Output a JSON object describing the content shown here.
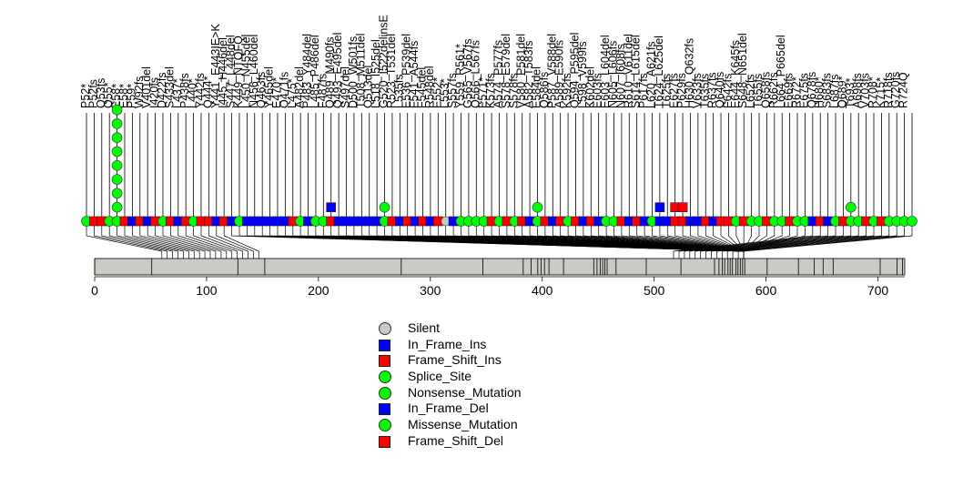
{
  "chart_data": {
    "type": "lollipop",
    "title": "",
    "xlabel": "",
    "ylabel": "",
    "protein_length": 724,
    "xlim": [
      0,
      724
    ],
    "axis_ticks": [
      0,
      100,
      200,
      300,
      400,
      500,
      600,
      700
    ],
    "colors": {
      "silent": "#c8c8c8",
      "in_frame_ins": "#0000ff",
      "frame_shift_ins": "#ff0000",
      "splice_site": "#00ff00",
      "nonsense": "#00ff00",
      "in_frame_del": "#0000ff",
      "missense": "#00ff00",
      "frame_shift_del": "#ff0000",
      "domain": "#c8ccc4"
    },
    "labels": [
      "P52*",
      "P52fs",
      "Q53fs",
      "Q55*",
      "E58*",
      "E58*",
      "P59*",
      "W92fs",
      "V401del",
      "I420fs",
      "D422fs",
      "S433del",
      "L437*",
      "P438fs",
      "L440*",
      "Y442fs",
      "Q444*",
      "Y441_E443IE>K",
      "I445_H446del",
      "S447_L448del",
      "K449_NTQFQ",
      "L450_N455del",
      "N456_L460del",
      "Q463fs",
      "Y465del",
      "E470*",
      "Q471fs",
      "L475*",
      "A482del",
      "P483_Y484del",
      "L485_P486del",
      "F487fs",
      "Q489_M490fs",
      "Q493_E495del",
      "S497del",
      "D500_W501fs",
      "T508_M511del",
      "Q513del",
      "L518_I525del",
      "G520_I522delinsE",
      "R523_T531del",
      "L535fs",
      "E536_P539del",
      "F541_A544fs",
      "F545del",
      "R548del",
      "E552*",
      "L553*",
      "S557fs",
      "Y559_R561*",
      "G565_V567fs",
      "Q566_L567fs",
      "E571*",
      "K573fs",
      "A574_P577fs",
      "S578_E579del",
      "S578fs",
      "V580_P581del",
      "A582_T583fs",
      "E584del",
      "Q586fs",
      "P587_V588del",
      "A589_E590fs",
      "K592fs",
      "Q594_P595del",
      "L598_V599fs",
      "K602del",
      "E603fs",
      "E603_L604del",
      "N605_L606fs",
      "N607_I608fs",
      "R610_V611del",
      "S614_L615del",
      "P617fs",
      "L620_A621fs",
      "T624_L625del",
      "T625fs",
      "E627fs",
      "P629fs",
      "H630_Q632fs",
      "V633fs",
      "T635fs",
      "R637fs",
      "Q640fs",
      "F642fs",
      "E644_K645fs",
      "S648_N651del",
      "L652fs",
      "T655fs",
      "Q658fs",
      "R662fs",
      "L664_P665del",
      "E669fs",
      "R672*",
      "E675fs",
      "Q678fs",
      "H680*",
      "S683fs",
      "L687fs",
      "Q689*",
      "T693*",
      "A698fs",
      "V703fs",
      "R708*",
      "K715*",
      "R718fs",
      "G720fs",
      "R724Q"
    ],
    "markers": [
      {
        "type": "splice_site",
        "count": 1
      },
      {
        "type": "frame_shift_ins",
        "count": 1
      },
      {
        "type": "frame_shift_ins",
        "count": 1
      },
      {
        "type": "splice_site",
        "count": 1
      },
      {
        "type": "nonsense",
        "count": 9
      },
      {
        "type": "frame_shift_ins",
        "count": 1
      },
      {
        "type": "in_frame_del",
        "count": 1
      },
      {
        "type": "frame_shift_ins",
        "count": 1
      },
      {
        "type": "in_frame_del",
        "count": 1
      },
      {
        "type": "frame_shift_del",
        "count": 1
      },
      {
        "type": "splice_site",
        "count": 1
      },
      {
        "type": "frame_shift_del",
        "count": 1
      },
      {
        "type": "in_frame_del",
        "count": 1
      },
      {
        "type": "frame_shift_del",
        "count": 1
      },
      {
        "type": "missense",
        "count": 1
      },
      {
        "type": "frame_shift_del",
        "count": 1
      },
      {
        "type": "frame_shift_del",
        "count": 1
      },
      {
        "type": "in_frame_del",
        "count": 1
      },
      {
        "type": "frame_shift_del",
        "count": 1
      },
      {
        "type": "in_frame_ins",
        "count": 1
      },
      {
        "type": "missense",
        "count": 1
      },
      {
        "type": "in_frame_del",
        "count": 1
      },
      {
        "type": "in_frame_del",
        "count": 1
      },
      {
        "type": "in_frame_del",
        "count": 1
      },
      {
        "type": "in_frame_del",
        "count": 1
      },
      {
        "type": "in_frame_del",
        "count": 1
      },
      {
        "type": "in_frame_del",
        "count": 1
      },
      {
        "type": "frame_shift_del",
        "count": 1
      },
      {
        "type": "missense",
        "count": 1
      },
      {
        "type": "in_frame_del",
        "count": 1
      },
      {
        "type": "missense",
        "count": 1
      },
      {
        "type": "missense",
        "count": 1
      },
      {
        "type": "in_frame_ins_stack",
        "count": 2
      },
      {
        "type": "in_frame_del",
        "count": 1
      },
      {
        "type": "in_frame_del",
        "count": 1
      },
      {
        "type": "in_frame_del",
        "count": 1
      },
      {
        "type": "in_frame_del",
        "count": 1
      },
      {
        "type": "in_frame_del",
        "count": 1
      },
      {
        "type": "in_frame_del",
        "count": 1
      },
      {
        "type": "missense",
        "count": 2
      },
      {
        "type": "frame_shift_del",
        "count": 1
      },
      {
        "type": "in_frame_del",
        "count": 1
      },
      {
        "type": "frame_shift_del",
        "count": 1
      },
      {
        "type": "in_frame_del",
        "count": 1
      },
      {
        "type": "frame_shift_del",
        "count": 1
      },
      {
        "type": "in_frame_del",
        "count": 1
      },
      {
        "type": "frame_shift_del",
        "count": 1
      },
      {
        "type": "silent",
        "count": 1
      },
      {
        "type": "in_frame_del",
        "count": 1
      },
      {
        "type": "missense",
        "count": 1
      },
      {
        "type": "missense",
        "count": 1
      },
      {
        "type": "missense",
        "count": 1
      },
      {
        "type": "missense",
        "count": 1
      },
      {
        "type": "frame_shift_del",
        "count": 1
      },
      {
        "type": "missense",
        "count": 1
      },
      {
        "type": "frame_shift_del",
        "count": 1
      },
      {
        "type": "missense",
        "count": 1
      },
      {
        "type": "frame_shift_del",
        "count": 1
      },
      {
        "type": "in_frame_del",
        "count": 1
      },
      {
        "type": "missense",
        "count": 2
      },
      {
        "type": "frame_shift_del",
        "count": 1
      },
      {
        "type": "in_frame_del",
        "count": 1
      },
      {
        "type": "frame_shift_del",
        "count": 1
      },
      {
        "type": "missense",
        "count": 1
      },
      {
        "type": "frame_shift_del",
        "count": 1
      },
      {
        "type": "in_frame_del",
        "count": 1
      },
      {
        "type": "frame_shift_del",
        "count": 1
      },
      {
        "type": "in_frame_del",
        "count": 1
      },
      {
        "type": "missense",
        "count": 1
      },
      {
        "type": "missense",
        "count": 1
      },
      {
        "type": "frame_shift_del",
        "count": 1
      },
      {
        "type": "in_frame_del",
        "count": 1
      },
      {
        "type": "frame_shift_del",
        "count": 1
      },
      {
        "type": "in_frame_del",
        "count": 1
      },
      {
        "type": "missense",
        "count": 1
      },
      {
        "type": "in_frame_del",
        "count": 2
      },
      {
        "type": "in_frame_del",
        "count": 1
      },
      {
        "type": "frame_shift_del",
        "count": 2
      },
      {
        "type": "frame_shift_del",
        "count": 2
      },
      {
        "type": "in_frame_del",
        "count": 1
      },
      {
        "type": "in_frame_del",
        "count": 1
      },
      {
        "type": "frame_shift_del",
        "count": 1
      },
      {
        "type": "in_frame_del",
        "count": 1
      },
      {
        "type": "frame_shift_del",
        "count": 1
      },
      {
        "type": "frame_shift_del",
        "count": 1
      },
      {
        "type": "missense",
        "count": 1
      },
      {
        "type": "frame_shift_del",
        "count": 1
      },
      {
        "type": "missense",
        "count": 1
      },
      {
        "type": "missense",
        "count": 1
      },
      {
        "type": "frame_shift_del",
        "count": 1
      },
      {
        "type": "missense",
        "count": 1
      },
      {
        "type": "missense",
        "count": 1
      },
      {
        "type": "frame_shift_del",
        "count": 1
      },
      {
        "type": "missense",
        "count": 1
      },
      {
        "type": "missense",
        "count": 1
      },
      {
        "type": "in_frame_del",
        "count": 1
      },
      {
        "type": "frame_shift_del",
        "count": 1
      },
      {
        "type": "in_frame_del",
        "count": 1
      },
      {
        "type": "missense",
        "count": 1
      },
      {
        "type": "frame_shift_del",
        "count": 1
      },
      {
        "type": "missense",
        "count": 2
      },
      {
        "type": "missense",
        "count": 1
      },
      {
        "type": "frame_shift_del",
        "count": 1
      },
      {
        "type": "missense",
        "count": 1
      },
      {
        "type": "frame_shift_del",
        "count": 1
      },
      {
        "type": "missense",
        "count": 1
      },
      {
        "type": "missense",
        "count": 1
      },
      {
        "type": "missense",
        "count": 1
      },
      {
        "type": "missense",
        "count": 1
      }
    ],
    "domain_boundaries": [
      0,
      51,
      128,
      152,
      274,
      347,
      383,
      390,
      396,
      399,
      402,
      406,
      419,
      446,
      449,
      452,
      454,
      456,
      458,
      466,
      493,
      524,
      554,
      558,
      561,
      563,
      566,
      568,
      570,
      573,
      575,
      577,
      579,
      581,
      601,
      629,
      643,
      651,
      660,
      702,
      717,
      722
    ],
    "legend": [
      "Silent",
      "In_Frame_Ins",
      "Frame_Shift_Ins",
      "Splice_Site",
      "Nonsense_Mutation",
      "In_Frame_Del",
      "Missense_Mutation",
      "Frame_Shift_Del"
    ]
  },
  "legend_items": [
    {
      "label": "Silent",
      "color": "#c8c8c8",
      "shape": "circle"
    },
    {
      "label": "In_Frame_Ins",
      "color": "#0000ff",
      "shape": "square"
    },
    {
      "label": "Frame_Shift_Ins",
      "color": "#ff0000",
      "shape": "square"
    },
    {
      "label": "Splice_Site",
      "color": "#00ff00",
      "shape": "circle"
    },
    {
      "label": "Nonsense_Mutation",
      "color": "#00ff00",
      "shape": "circle"
    },
    {
      "label": "In_Frame_Del",
      "color": "#0000ff",
      "shape": "square"
    },
    {
      "label": "Missense_Mutation",
      "color": "#00ff00",
      "shape": "circle"
    },
    {
      "label": "Frame_Shift_Del",
      "color": "#ff0000",
      "shape": "square"
    }
  ]
}
